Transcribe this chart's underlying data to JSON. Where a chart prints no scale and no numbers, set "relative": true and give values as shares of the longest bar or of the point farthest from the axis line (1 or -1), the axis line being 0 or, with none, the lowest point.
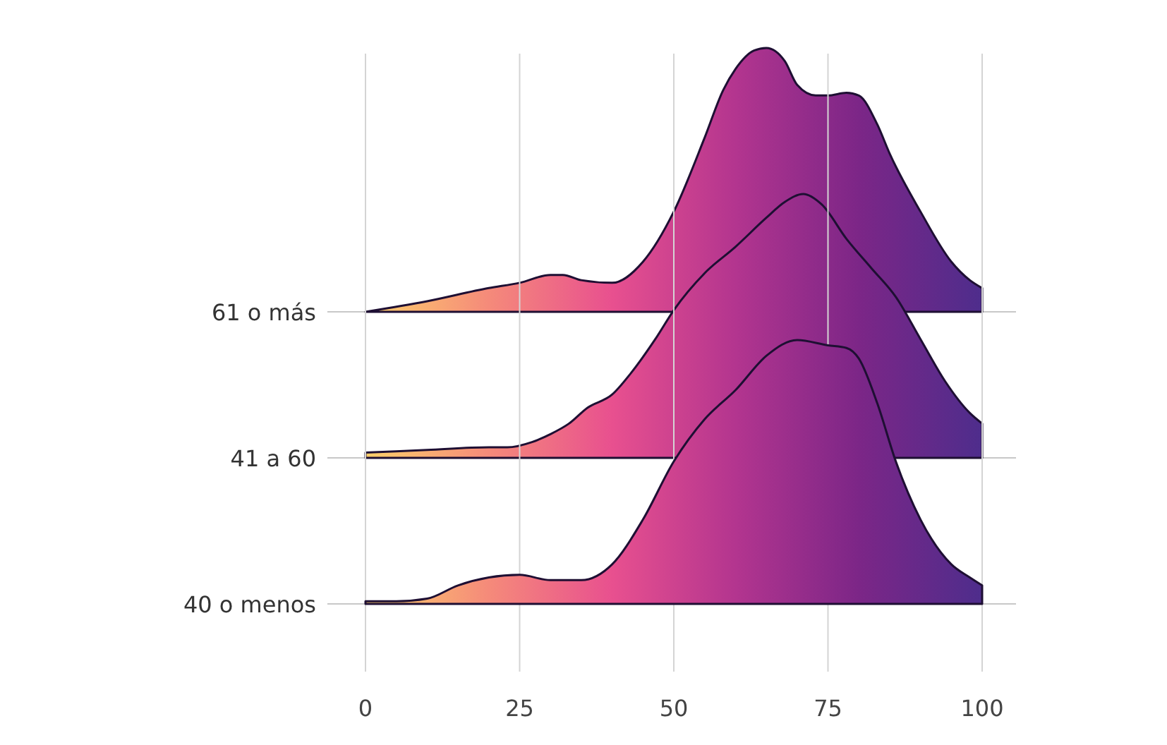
{
  "chart_data": [
    {
      "type": "area",
      "relative": true,
      "xlim": [
        0,
        100
      ],
      "xticks": [
        0,
        25,
        50,
        75,
        100
      ],
      "tick_labels": false,
      "colors": [
        "#fdd06a",
        "#f58a7a",
        "#e8508f",
        "#b3358f",
        "#7c2687",
        "#4e2d8c"
      ],
      "series": [
        {
          "name": "61 o más",
          "color": "#1e0f33",
          "x": [
            0,
            10,
            20,
            25,
            30,
            32,
            35,
            40,
            45,
            50,
            55,
            58,
            60,
            63,
            65,
            68,
            70,
            73,
            75,
            78,
            80,
            83,
            85,
            90,
            95,
            98,
            100
          ],
          "values": [
            0,
            0.04,
            0.09,
            0.11,
            0.14,
            0.14,
            0.12,
            0.11,
            0.19,
            0.38,
            0.66,
            0.84,
            0.92,
            0.99,
            1.0,
            0.95,
            0.86,
            0.82,
            0.82,
            0.83,
            0.82,
            0.71,
            0.6,
            0.38,
            0.19,
            0.12,
            0.09
          ]
        }
      ]
    },
    {
      "type": "area",
      "relative": true,
      "xlim": [
        0,
        100
      ],
      "xticks": [
        0,
        25,
        50,
        75,
        100
      ],
      "tick_labels": false,
      "colors": [
        "#fdd06a",
        "#f58a7a",
        "#e8508f",
        "#b3358f",
        "#7c2687",
        "#4e2d8c"
      ],
      "series": [
        {
          "name": "41 a 60",
          "color": "#1e0f33",
          "x": [
            0,
            10,
            20,
            23,
            27,
            30,
            33,
            36,
            40,
            43,
            47,
            50,
            55,
            60,
            65,
            68,
            71,
            74,
            78,
            82,
            86,
            90,
            94,
            98,
            100
          ],
          "values": [
            0.02,
            0.03,
            0.04,
            0.04,
            0.06,
            0.09,
            0.13,
            0.19,
            0.24,
            0.32,
            0.45,
            0.56,
            0.7,
            0.8,
            0.91,
            0.97,
            1.0,
            0.96,
            0.83,
            0.72,
            0.61,
            0.45,
            0.29,
            0.17,
            0.13
          ]
        }
      ]
    },
    {
      "type": "area",
      "relative": true,
      "xlim": [
        0,
        100
      ],
      "xticks": [
        0,
        25,
        50,
        75,
        100
      ],
      "grid": "x",
      "tick_labels": "x",
      "colors": [
        "#fdd06a",
        "#f58a7a",
        "#e8508f",
        "#b3358f",
        "#7c2687",
        "#4e2d8c"
      ],
      "series": [
        {
          "name": "40 o menos",
          "color": "#1e0f33",
          "x": [
            0,
            5,
            10,
            15,
            20,
            25,
            30,
            35,
            40,
            45,
            50,
            55,
            60,
            65,
            70,
            75,
            78,
            80,
            83,
            86,
            90,
            95,
            98,
            100
          ],
          "values": [
            0.01,
            0.01,
            0.02,
            0.07,
            0.1,
            0.11,
            0.09,
            0.09,
            0.15,
            0.32,
            0.54,
            0.7,
            0.81,
            0.94,
            1.0,
            0.98,
            0.97,
            0.93,
            0.76,
            0.54,
            0.32,
            0.15,
            0.1,
            0.07
          ]
        }
      ]
    }
  ]
}
